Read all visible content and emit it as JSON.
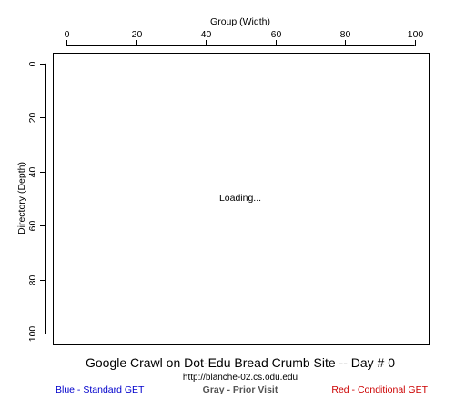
{
  "chart_data": {
    "type": "scatter",
    "title": "Google Crawl on Dot-Edu Bread Crumb Site -- Day # 0",
    "subtitle": "http://blanche-02.cs.odu.edu",
    "xlabel": "Group (Width)",
    "ylabel": "Directory (Depth)",
    "xlim": [
      -4,
      104
    ],
    "ylim": [
      104,
      -4
    ],
    "xticks": [
      "0",
      "20",
      "40",
      "60",
      "80",
      "100"
    ],
    "yticks": [
      "0",
      "20",
      "40",
      "60",
      "80",
      "100"
    ],
    "x_axis_position": "top",
    "y_axis_inverted": true,
    "grid": false,
    "points": [],
    "status_text": "Loading...",
    "legend": [
      {
        "label": "Blue - Standard GET",
        "color": "#0000cc",
        "placement": "bottom-left"
      },
      {
        "label": "Gray - Prior Visit",
        "color": "#555555",
        "placement": "bottom-center"
      },
      {
        "label": "Red - Conditional GET",
        "color": "#cc0000",
        "placement": "bottom-right"
      }
    ]
  }
}
